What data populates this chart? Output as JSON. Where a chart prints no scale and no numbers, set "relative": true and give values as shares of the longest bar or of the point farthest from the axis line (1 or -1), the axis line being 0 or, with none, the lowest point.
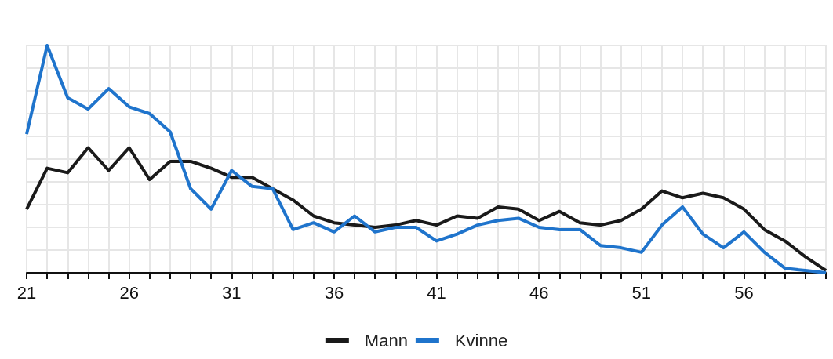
{
  "chart_data": {
    "type": "line",
    "relative": true,
    "x": [
      21,
      22,
      23,
      24,
      25,
      26,
      27,
      28,
      29,
      30,
      31,
      32,
      33,
      34,
      35,
      36,
      37,
      38,
      39,
      40,
      41,
      42,
      43,
      44,
      45,
      46,
      47,
      48,
      49,
      50,
      51,
      52,
      53,
      54,
      55,
      56,
      57,
      58,
      59,
      60
    ],
    "xlim": [
      21,
      60
    ],
    "xticks": [
      21,
      {
        "value": 22,
        "label": null
      },
      {
        "value": 23,
        "label": null
      },
      {
        "value": 24,
        "label": null
      },
      {
        "value": 25,
        "label": null
      },
      26,
      {
        "value": 27,
        "label": null
      },
      {
        "value": 28,
        "label": null
      },
      {
        "value": 29,
        "label": null
      },
      {
        "value": 30,
        "label": null
      },
      31,
      {
        "value": 32,
        "label": null
      },
      {
        "value": 33,
        "label": null
      },
      {
        "value": 34,
        "label": null
      },
      {
        "value": 35,
        "label": null
      },
      36,
      {
        "value": 37,
        "label": null
      },
      {
        "value": 38,
        "label": null
      },
      {
        "value": 39,
        "label": null
      },
      {
        "value": 40,
        "label": null
      },
      41,
      {
        "value": 42,
        "label": null
      },
      {
        "value": 43,
        "label": null
      },
      {
        "value": 44,
        "label": null
      },
      {
        "value": 45,
        "label": null
      },
      46,
      {
        "value": 47,
        "label": null
      },
      {
        "value": 48,
        "label": null
      },
      {
        "value": 49,
        "label": null
      },
      {
        "value": 50,
        "label": null
      },
      51,
      {
        "value": 52,
        "label": null
      },
      {
        "value": 53,
        "label": null
      },
      {
        "value": 54,
        "label": null
      },
      {
        "value": 55,
        "label": null
      },
      56,
      {
        "value": 57,
        "label": null
      },
      {
        "value": 58,
        "label": null
      },
      {
        "value": 59,
        "label": null
      },
      {
        "value": 60,
        "label": null
      }
    ],
    "series": [
      {
        "name": "Mann",
        "color": "#1a1a1a",
        "values": [
          0.28,
          0.46,
          0.44,
          0.55,
          0.45,
          0.55,
          0.41,
          0.49,
          0.49,
          0.46,
          0.42,
          0.42,
          0.37,
          0.32,
          0.25,
          0.22,
          0.21,
          0.2,
          0.21,
          0.23,
          0.21,
          0.25,
          0.24,
          0.29,
          0.28,
          0.23,
          0.27,
          0.22,
          0.21,
          0.23,
          0.28,
          0.36,
          0.33,
          0.35,
          0.33,
          0.28,
          0.19,
          0.14,
          0.07,
          0.01
        ]
      },
      {
        "name": "Kvinne",
        "color": "#1f74cc",
        "values": [
          0.61,
          1,
          0.77,
          0.72,
          0.81,
          0.73,
          0.7,
          0.62,
          0.37,
          0.28,
          0.45,
          0.38,
          0.37,
          0.19,
          0.22,
          0.18,
          0.25,
          0.18,
          0.2,
          0.2,
          0.14,
          0.17,
          0.21,
          0.23,
          0.24,
          0.2,
          0.19,
          0.19,
          0.12,
          0.11,
          0.09,
          0.21,
          0.29,
          0.17,
          0.11,
          0.18,
          0.09,
          0.02,
          0.01,
          0
        ]
      }
    ],
    "grid": true,
    "legend": "bottom",
    "marker": "none",
    "line_style": "solid"
  }
}
